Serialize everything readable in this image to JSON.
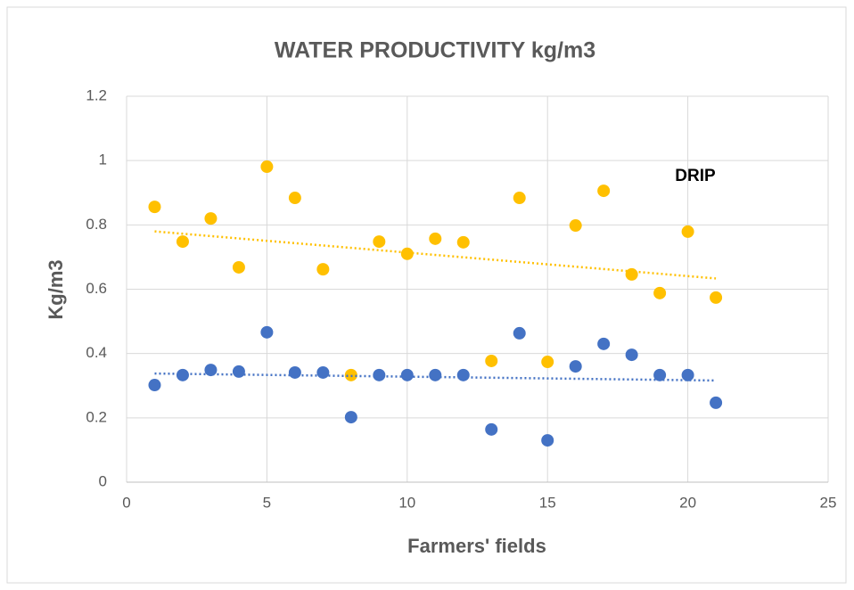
{
  "chart_data": {
    "type": "scatter",
    "title": "WATER PRODUCTIVITY  kg/m3",
    "x_label": "Farmers' fields",
    "y_label": "Kg/m3",
    "annotation": "DRIP",
    "x": [
      1,
      2,
      3,
      4,
      5,
      6,
      7,
      8,
      9,
      10,
      11,
      12,
      13,
      14,
      15,
      16,
      17,
      18,
      19,
      20,
      21
    ],
    "series": [
      {
        "color": "#ffc000",
        "trendline": "linear",
        "values": [
          0.856,
          0.748,
          0.82,
          0.668,
          0.981,
          0.884,
          0.662,
          0.333,
          0.748,
          0.71,
          0.757,
          0.746,
          0.377,
          0.884,
          0.374,
          0.798,
          0.906,
          0.646,
          0.588,
          0.779,
          0.574
        ]
      },
      {
        "color": "#4472c4",
        "trendline": "linear",
        "values": [
          0.302,
          0.333,
          0.349,
          0.344,
          0.466,
          0.341,
          0.341,
          0.202,
          0.333,
          0.333,
          0.333,
          0.333,
          0.164,
          0.463,
          0.13,
          0.36,
          0.43,
          0.396,
          0.333,
          0.333,
          0.247
        ]
      }
    ],
    "xlim": [
      0,
      25
    ],
    "xticks": [
      0,
      5,
      10,
      15,
      20,
      25
    ],
    "ylim": [
      0,
      1.2
    ],
    "yticks": [
      0,
      0.2,
      0.4,
      0.6,
      0.8,
      1,
      1.2
    ],
    "grid": true
  }
}
